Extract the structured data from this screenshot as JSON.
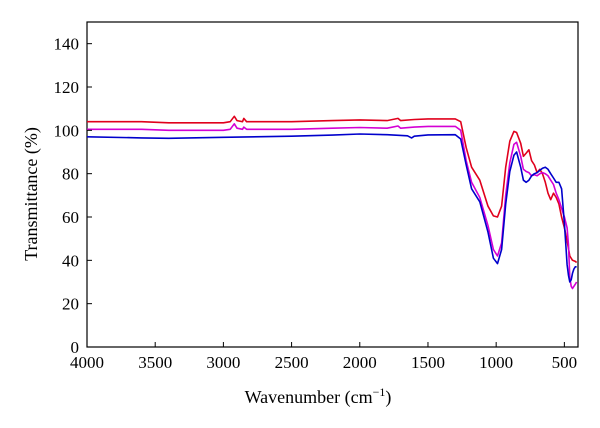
{
  "chart_data": {
    "type": "line",
    "title": "",
    "xlabel": "Wavenumber (cm",
    "xlabel_sup": "−1",
    "xlabel_close": ")",
    "ylabel": "Transmittance (%)",
    "xlim": [
      4000,
      400
    ],
    "ylim": [
      0,
      150
    ],
    "x_reversed": true,
    "grid": false,
    "legend": "none",
    "xticks": [
      4000,
      3500,
      3000,
      2500,
      2000,
      1500,
      1000,
      500
    ],
    "yticks": [
      0,
      20,
      40,
      60,
      80,
      100,
      120,
      140
    ],
    "series": [
      {
        "color": "#e0001c",
        "points": [
          [
            4000,
            104
          ],
          [
            3600,
            104
          ],
          [
            3400,
            103.5
          ],
          [
            3000,
            103.5
          ],
          [
            2950,
            104
          ],
          [
            2920,
            106.5
          ],
          [
            2900,
            104.5
          ],
          [
            2860,
            104
          ],
          [
            2850,
            105.5
          ],
          [
            2830,
            104
          ],
          [
            2500,
            104
          ],
          [
            2200,
            104.5
          ],
          [
            2000,
            104.8
          ],
          [
            1800,
            104.5
          ],
          [
            1720,
            105.5
          ],
          [
            1700,
            104.5
          ],
          [
            1600,
            105
          ],
          [
            1500,
            105.3
          ],
          [
            1300,
            105.3
          ],
          [
            1260,
            104
          ],
          [
            1220,
            92
          ],
          [
            1180,
            83
          ],
          [
            1120,
            77
          ],
          [
            1060,
            65
          ],
          [
            1020,
            60.5
          ],
          [
            990,
            60
          ],
          [
            960,
            65
          ],
          [
            930,
            83
          ],
          [
            900,
            95
          ],
          [
            870,
            99.5
          ],
          [
            850,
            99
          ],
          [
            820,
            94
          ],
          [
            800,
            88
          ],
          [
            780,
            89.5
          ],
          [
            760,
            91
          ],
          [
            740,
            86
          ],
          [
            720,
            84
          ],
          [
            700,
            80.5
          ],
          [
            680,
            82
          ],
          [
            660,
            80
          ],
          [
            640,
            76
          ],
          [
            620,
            71
          ],
          [
            600,
            68
          ],
          [
            580,
            71
          ],
          [
            560,
            69
          ],
          [
            540,
            66
          ],
          [
            520,
            60
          ],
          [
            500,
            55
          ],
          [
            480,
            49
          ],
          [
            460,
            42
          ],
          [
            440,
            40
          ],
          [
            420,
            39.5
          ],
          [
            410,
            39
          ]
        ]
      },
      {
        "color": "#d400d4",
        "points": [
          [
            4000,
            100.5
          ],
          [
            3600,
            100.5
          ],
          [
            3400,
            100
          ],
          [
            3000,
            100
          ],
          [
            2950,
            100.5
          ],
          [
            2920,
            103
          ],
          [
            2900,
            101
          ],
          [
            2860,
            100.5
          ],
          [
            2850,
            101.5
          ],
          [
            2830,
            100.5
          ],
          [
            2500,
            100.5
          ],
          [
            2200,
            101
          ],
          [
            2000,
            101.3
          ],
          [
            1800,
            101
          ],
          [
            1720,
            102
          ],
          [
            1700,
            101
          ],
          [
            1600,
            101.5
          ],
          [
            1500,
            101.8
          ],
          [
            1300,
            101.8
          ],
          [
            1260,
            100
          ],
          [
            1220,
            86
          ],
          [
            1180,
            76
          ],
          [
            1120,
            69
          ],
          [
            1060,
            56
          ],
          [
            1020,
            45
          ],
          [
            990,
            42
          ],
          [
            960,
            48
          ],
          [
            930,
            70
          ],
          [
            900,
            85
          ],
          [
            870,
            93.5
          ],
          [
            850,
            94.5
          ],
          [
            820,
            88
          ],
          [
            800,
            82
          ],
          [
            780,
            81
          ],
          [
            760,
            80.5
          ],
          [
            740,
            79
          ],
          [
            720,
            79.5
          ],
          [
            700,
            79
          ],
          [
            680,
            80
          ],
          [
            660,
            80.5
          ],
          [
            640,
            80
          ],
          [
            620,
            79
          ],
          [
            600,
            77
          ],
          [
            580,
            75
          ],
          [
            560,
            71
          ],
          [
            540,
            68
          ],
          [
            520,
            64
          ],
          [
            500,
            60
          ],
          [
            480,
            55
          ],
          [
            470,
            47
          ],
          [
            460,
            32
          ],
          [
            450,
            28
          ],
          [
            440,
            27
          ],
          [
            430,
            28
          ],
          [
            420,
            29
          ],
          [
            410,
            30
          ]
        ]
      },
      {
        "color": "#0000cc",
        "points": [
          [
            4000,
            97
          ],
          [
            3600,
            96.5
          ],
          [
            3400,
            96.3
          ],
          [
            3000,
            96.8
          ],
          [
            2500,
            97.3
          ],
          [
            2200,
            97.8
          ],
          [
            2000,
            98.3
          ],
          [
            1800,
            98
          ],
          [
            1650,
            97.5
          ],
          [
            1620,
            96.5
          ],
          [
            1600,
            97.3
          ],
          [
            1500,
            97.9
          ],
          [
            1300,
            98
          ],
          [
            1260,
            96
          ],
          [
            1220,
            84
          ],
          [
            1180,
            73
          ],
          [
            1120,
            67
          ],
          [
            1060,
            53
          ],
          [
            1020,
            41
          ],
          [
            990,
            38.5
          ],
          [
            960,
            45
          ],
          [
            930,
            66
          ],
          [
            900,
            81
          ],
          [
            870,
            88.5
          ],
          [
            850,
            90
          ],
          [
            820,
            83
          ],
          [
            800,
            77
          ],
          [
            780,
            76
          ],
          [
            760,
            77
          ],
          [
            740,
            79
          ],
          [
            720,
            80
          ],
          [
            700,
            80.5
          ],
          [
            680,
            81.5
          ],
          [
            660,
            82.5
          ],
          [
            640,
            83
          ],
          [
            620,
            82
          ],
          [
            600,
            80
          ],
          [
            580,
            78
          ],
          [
            560,
            76
          ],
          [
            540,
            76
          ],
          [
            520,
            73
          ],
          [
            500,
            57
          ],
          [
            490,
            48
          ],
          [
            480,
            38
          ],
          [
            470,
            33
          ],
          [
            460,
            30
          ],
          [
            450,
            31
          ],
          [
            440,
            34
          ],
          [
            430,
            36
          ],
          [
            420,
            37
          ],
          [
            410,
            37
          ]
        ]
      }
    ]
  }
}
